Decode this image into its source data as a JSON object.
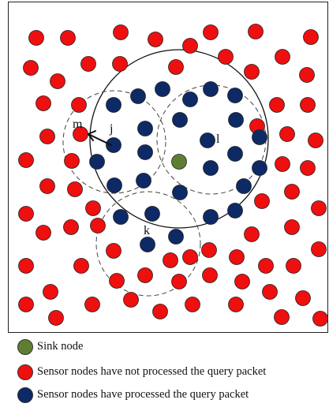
{
  "colors": {
    "sink": "#5e7f33",
    "unprocessed": "#ef0f0f",
    "processed": "#0d2a66",
    "stroke": "#222222"
  },
  "labels": {
    "m": "m",
    "j": "j",
    "l": "l",
    "k": "k"
  },
  "legend": [
    {
      "kind": "sink",
      "text": "Sink node"
    },
    {
      "kind": "unprocessed",
      "text": "Sensor nodes have not processed the query packet"
    },
    {
      "kind": "processed",
      "text": "Sensor nodes have processed the query packet"
    }
  ]
}
